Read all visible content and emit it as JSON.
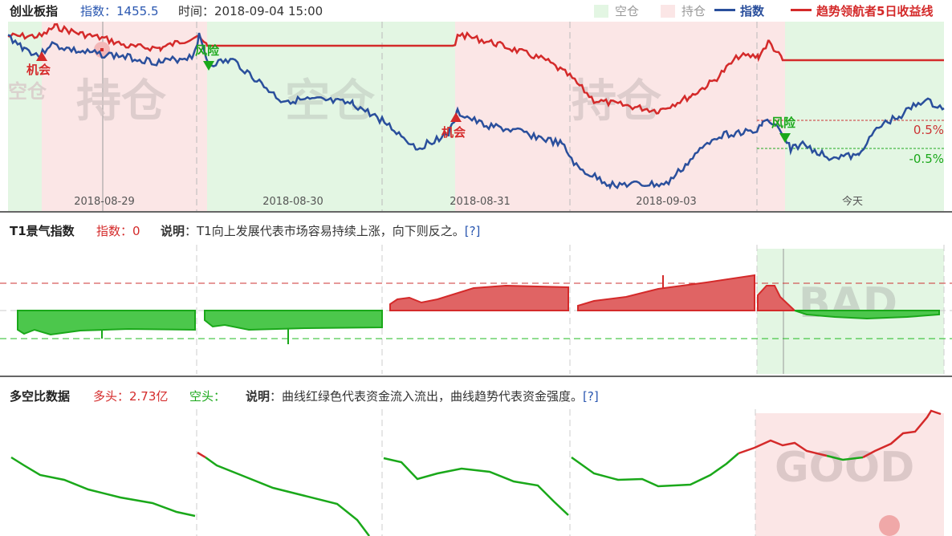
{
  "panel1": {
    "title": "创业板指",
    "index_label": "指数：1455.5",
    "time_label": "时间：2018-09-04 15:00",
    "legend": {
      "empty": "空仓",
      "hold": "持仓",
      "index": "指数",
      "profit": "趋势领航者5日收益线"
    },
    "dates": [
      "2018-08-29",
      "2018-08-30",
      "2018-08-31",
      "2018-09-03",
      "今天"
    ],
    "watermarks": [
      "空仓",
      "持仓",
      "空仓",
      "持仓"
    ],
    "signals": [
      "机会",
      "风险",
      "机会",
      "风险"
    ],
    "thresholds": [
      "0.5%",
      "-0.5%"
    ],
    "colors": {
      "index": "#2a4f9c",
      "profit": "#d42a2a",
      "empty_bg": "#e3f6e3",
      "hold_bg": "#fbe6e6"
    }
  },
  "panel2": {
    "title": "T1景气指数",
    "index_label": "指数：0",
    "desc_label": "说明",
    "desc": "：T1向上发展代表市场容易持续上涨，向下则反之。",
    "help": "[?]",
    "watermark": "BAD"
  },
  "panel3": {
    "title": "多空比数据",
    "long_label": "多头：2.73亿",
    "short_label": "空头：",
    "desc_label": "说明",
    "desc": "：曲线红绿色代表资金流入流出，曲线趋势代表资金强度。",
    "help": "[?]",
    "watermark": "GOOD"
  }
}
